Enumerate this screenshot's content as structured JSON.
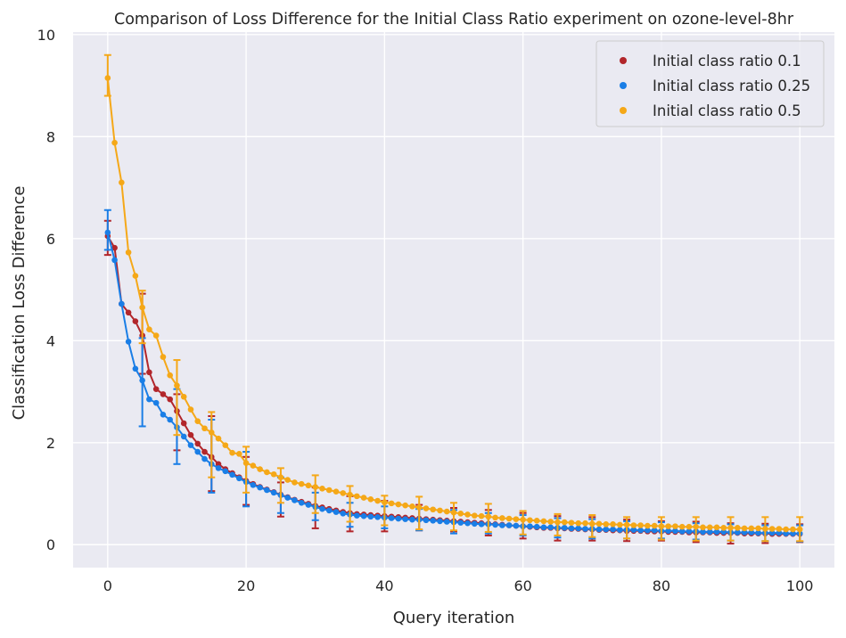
{
  "chart_data": {
    "type": "line",
    "title": "Comparison of Loss Difference for the Initial Class Ratio experiment on ozone-level-8hr",
    "xlabel": "Query iteration",
    "ylabel": "Classification Loss Difference",
    "xlim": [
      -5,
      105
    ],
    "ylim": [
      -0.45,
      10.05
    ],
    "xticks": [
      0,
      20,
      40,
      60,
      80,
      100
    ],
    "yticks": [
      0,
      2,
      4,
      6,
      8,
      10
    ],
    "grid": true,
    "legend_position": "top-right",
    "background": "#eaeaf2",
    "series": [
      {
        "name": "Initial class ratio 0.1",
        "color": "#b2262b",
        "y": [
          6.05,
          5.82,
          4.72,
          4.55,
          4.38,
          4.1,
          3.38,
          3.05,
          2.95,
          2.85,
          2.62,
          2.38,
          2.15,
          1.98,
          1.82,
          1.72,
          1.58,
          1.48,
          1.4,
          1.32,
          1.25,
          1.19,
          1.13,
          1.08,
          1.03,
          0.98,
          0.93,
          0.88,
          0.84,
          0.8,
          0.76,
          0.73,
          0.7,
          0.67,
          0.64,
          0.62,
          0.6,
          0.59,
          0.58,
          0.57,
          0.56,
          0.55,
          0.54,
          0.53,
          0.52,
          0.51,
          0.5,
          0.49,
          0.48,
          0.47,
          0.46,
          0.45,
          0.44,
          0.43,
          0.42,
          0.41,
          0.4,
          0.39,
          0.38,
          0.37,
          0.36,
          0.35,
          0.34,
          0.33,
          0.33,
          0.32,
          0.32,
          0.31,
          0.31,
          0.3,
          0.3,
          0.29,
          0.29,
          0.28,
          0.28,
          0.27,
          0.27,
          0.27,
          0.26,
          0.26,
          0.26,
          0.25,
          0.25,
          0.25,
          0.24,
          0.24,
          0.24,
          0.24,
          0.23,
          0.23,
          0.23,
          0.23,
          0.22,
          0.22,
          0.22,
          0.22,
          0.21,
          0.21,
          0.21,
          0.21,
          0.21
        ],
        "err_x": [
          0,
          5,
          10,
          15,
          20,
          25,
          30,
          35,
          40,
          45,
          50,
          55,
          60,
          65,
          70,
          75,
          80,
          85,
          90,
          95,
          100
        ],
        "err_lo": [
          5.68,
          3.35,
          1.85,
          1.05,
          0.78,
          0.55,
          0.32,
          0.26,
          0.26,
          0.28,
          0.26,
          0.18,
          0.12,
          0.08,
          0.08,
          0.07,
          0.08,
          0.05,
          0.02,
          0.03,
          0.05
        ],
        "err_hi": [
          6.35,
          4.92,
          2.95,
          2.52,
          1.72,
          1.22,
          1.12,
          0.95,
          0.86,
          0.78,
          0.72,
          0.68,
          0.62,
          0.56,
          0.54,
          0.49,
          0.46,
          0.45,
          0.42,
          0.41,
          0.4
        ]
      },
      {
        "name": "Initial class ratio 0.25",
        "color": "#1a7ee6",
        "y": [
          6.12,
          5.58,
          4.72,
          3.98,
          3.45,
          3.22,
          2.85,
          2.78,
          2.55,
          2.45,
          2.3,
          2.12,
          1.95,
          1.82,
          1.68,
          1.58,
          1.5,
          1.44,
          1.37,
          1.3,
          1.23,
          1.17,
          1.12,
          1.07,
          1.02,
          0.97,
          0.92,
          0.87,
          0.82,
          0.78,
          0.74,
          0.7,
          0.67,
          0.64,
          0.61,
          0.59,
          0.57,
          0.56,
          0.55,
          0.54,
          0.53,
          0.52,
          0.51,
          0.5,
          0.49,
          0.49,
          0.48,
          0.47,
          0.46,
          0.45,
          0.44,
          0.43,
          0.42,
          0.41,
          0.4,
          0.4,
          0.39,
          0.38,
          0.38,
          0.37,
          0.36,
          0.36,
          0.35,
          0.34,
          0.34,
          0.33,
          0.33,
          0.32,
          0.32,
          0.31,
          0.31,
          0.3,
          0.3,
          0.3,
          0.29,
          0.29,
          0.29,
          0.28,
          0.28,
          0.28,
          0.27,
          0.27,
          0.27,
          0.26,
          0.26,
          0.26,
          0.25,
          0.25,
          0.25,
          0.25,
          0.24,
          0.24,
          0.24,
          0.24,
          0.23,
          0.23,
          0.23,
          0.23,
          0.22,
          0.22,
          0.22
        ],
        "err_x": [
          0,
          5,
          10,
          15,
          20,
          25,
          30,
          35,
          40,
          45,
          50,
          55,
          60,
          65,
          70,
          75,
          80,
          85,
          90,
          95,
          100
        ],
        "err_lo": [
          5.78,
          2.32,
          1.58,
          1.02,
          0.75,
          0.62,
          0.48,
          0.35,
          0.32,
          0.28,
          0.22,
          0.22,
          0.18,
          0.14,
          0.12,
          0.12,
          0.12,
          0.1,
          0.08,
          0.07,
          0.06
        ],
        "err_hi": [
          6.56,
          4.05,
          3.05,
          2.45,
          1.82,
          1.32,
          1.02,
          0.82,
          0.75,
          0.7,
          0.68,
          0.62,
          0.58,
          0.52,
          0.5,
          0.46,
          0.44,
          0.42,
          0.4,
          0.38,
          0.38
        ]
      },
      {
        "name": "Initial class ratio 0.5",
        "color": "#f5a818",
        "y": [
          9.15,
          7.88,
          7.1,
          5.73,
          5.27,
          4.65,
          4.22,
          4.1,
          3.68,
          3.32,
          3.12,
          2.9,
          2.65,
          2.42,
          2.28,
          2.2,
          2.08,
          1.95,
          1.8,
          1.78,
          1.6,
          1.55,
          1.48,
          1.42,
          1.38,
          1.32,
          1.27,
          1.22,
          1.19,
          1.16,
          1.13,
          1.1,
          1.07,
          1.04,
          1.01,
          0.98,
          0.95,
          0.92,
          0.89,
          0.86,
          0.83,
          0.81,
          0.79,
          0.77,
          0.75,
          0.73,
          0.71,
          0.69,
          0.67,
          0.65,
          0.63,
          0.61,
          0.59,
          0.57,
          0.56,
          0.55,
          0.53,
          0.52,
          0.51,
          0.5,
          0.49,
          0.48,
          0.47,
          0.46,
          0.45,
          0.44,
          0.44,
          0.43,
          0.42,
          0.42,
          0.41,
          0.41,
          0.4,
          0.4,
          0.39,
          0.39,
          0.38,
          0.38,
          0.37,
          0.37,
          0.36,
          0.36,
          0.36,
          0.35,
          0.35,
          0.35,
          0.34,
          0.34,
          0.34,
          0.33,
          0.33,
          0.33,
          0.32,
          0.32,
          0.32,
          0.31,
          0.31,
          0.31,
          0.3,
          0.3,
          0.3
        ],
        "err_x": [
          0,
          5,
          10,
          15,
          20,
          25,
          30,
          35,
          40,
          45,
          50,
          55,
          60,
          65,
          70,
          75,
          80,
          85,
          90,
          95,
          100
        ],
        "err_lo": [
          8.8,
          3.95,
          2.15,
          1.32,
          1.02,
          0.82,
          0.62,
          0.45,
          0.38,
          0.3,
          0.28,
          0.25,
          0.2,
          0.18,
          0.15,
          0.12,
          0.1,
          0.08,
          0.08,
          0.07,
          0.07
        ],
        "err_hi": [
          9.6,
          4.98,
          3.62,
          2.6,
          1.92,
          1.5,
          1.36,
          1.15,
          0.96,
          0.94,
          0.82,
          0.8,
          0.66,
          0.6,
          0.58,
          0.54,
          0.54,
          0.54,
          0.54,
          0.54,
          0.54
        ]
      }
    ]
  }
}
